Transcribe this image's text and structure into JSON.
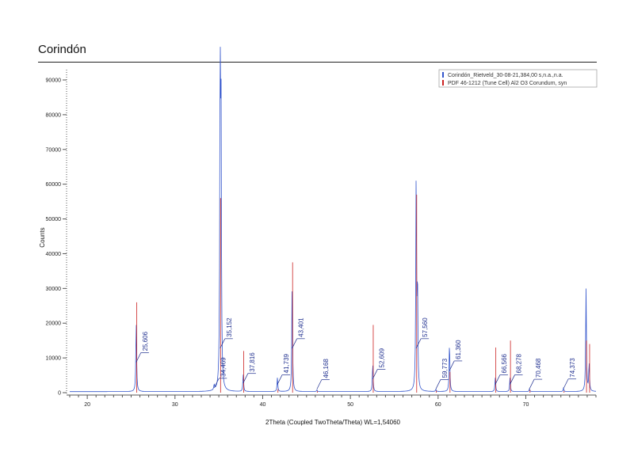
{
  "header": {
    "title": "Corindón"
  },
  "chart_data": {
    "type": "line",
    "title": "Corindón",
    "xlabel": "2Theta (Coupled TwoTheta/Theta) WL=1,54060",
    "ylabel": "Counts",
    "xlim": [
      18,
      78
    ],
    "ylim": [
      0,
      93000
    ],
    "xticks": [
      20,
      30,
      40,
      50,
      60,
      70
    ],
    "yticks": [
      0,
      10000,
      20000,
      30000,
      40000,
      50000,
      60000,
      70000,
      80000,
      90000
    ],
    "grid": false,
    "legend_position": "top-right",
    "series": [
      {
        "name": "Corindón_Rietveld_30-08-21,384,00 s,n.a.,n.a.",
        "color": "#3355cc",
        "style": "pattern"
      },
      {
        "name": "PDF 46-1212 (Tune Cell) Al2 O3 Corundum, syn",
        "color": "#cc2222",
        "style": "sticks"
      }
    ],
    "peaks": [
      {
        "two_theta": 25.58,
        "measured": 20000,
        "reference": 26000,
        "label": "25,606"
      },
      {
        "two_theta": 34.47,
        "measured": 1500,
        "reference": 0,
        "label": "34,469"
      },
      {
        "two_theta": 35.15,
        "measured": 89000,
        "reference": 56000,
        "label": "35,152"
      },
      {
        "two_theta": 35.25,
        "measured": 77000,
        "reference": 0,
        "label": ""
      },
      {
        "two_theta": 37.78,
        "measured": 5000,
        "reference": 12000,
        "label": "37,816"
      },
      {
        "two_theta": 41.68,
        "measured": 4000,
        "reference": 1000,
        "label": "41,739"
      },
      {
        "two_theta": 43.36,
        "measured": 31000,
        "reference": 37500,
        "label": "43,401"
      },
      {
        "two_theta": 46.18,
        "measured": 500,
        "reference": 500,
        "label": "46,168"
      },
      {
        "two_theta": 52.55,
        "measured": 8000,
        "reference": 19500,
        "label": "52,609"
      },
      {
        "two_theta": 57.5,
        "measured": 61500,
        "reference": 57000,
        "label": "57,560"
      },
      {
        "two_theta": 57.65,
        "measured": 29500,
        "reference": 0,
        "label": ""
      },
      {
        "two_theta": 59.74,
        "measured": 600,
        "reference": 600,
        "label": "59,773"
      },
      {
        "two_theta": 61.3,
        "measured": 14000,
        "reference": 6000,
        "label": "61,360"
      },
      {
        "two_theta": 66.52,
        "measured": 4000,
        "reference": 13000,
        "label": "66,566"
      },
      {
        "two_theta": 68.2,
        "measured": 4000,
        "reference": 15000,
        "label": "68,278"
      },
      {
        "two_theta": 70.42,
        "measured": 800,
        "reference": 800,
        "label": "70,468"
      },
      {
        "two_theta": 74.3,
        "measured": 1000,
        "reference": 500,
        "label": "74,373"
      },
      {
        "two_theta": 76.87,
        "measured": 29500,
        "reference": 15000,
        "label": ""
      },
      {
        "two_theta": 77.22,
        "measured": 8000,
        "reference": 14000,
        "label": ""
      }
    ]
  }
}
